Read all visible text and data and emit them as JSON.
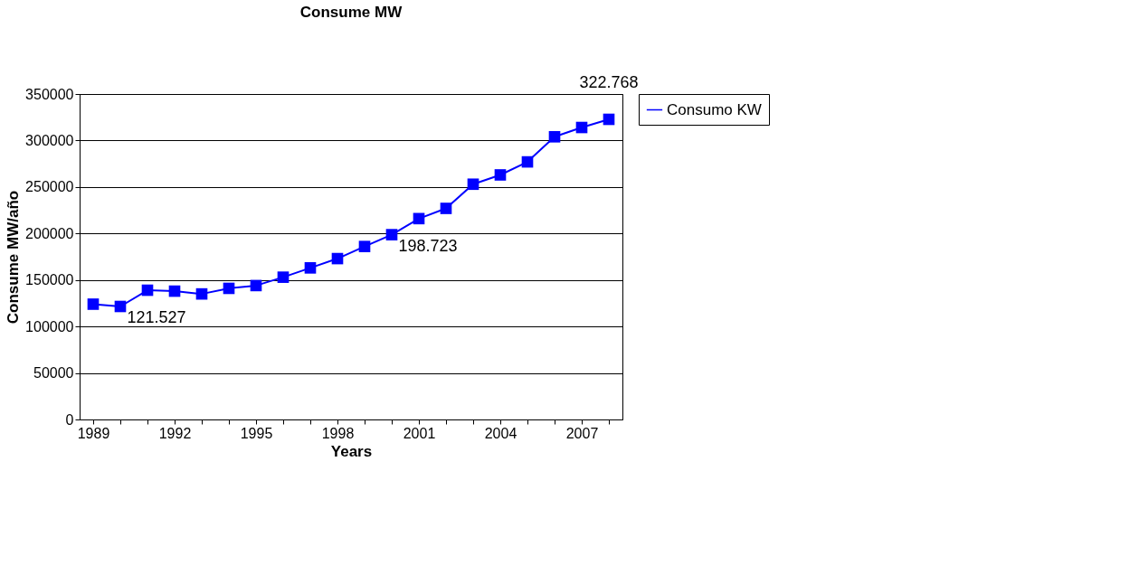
{
  "chart_data": {
    "type": "line",
    "title": "Consume MW",
    "xlabel": "Years",
    "ylabel": "Consume MW/año",
    "categories": [
      "1989",
      null,
      null,
      "1992",
      null,
      null,
      "1995",
      null,
      null,
      "1998",
      null,
      null,
      "2001",
      null,
      null,
      "2004",
      null,
      null,
      "2007",
      null
    ],
    "series": [
      {
        "name": "Consumo KW",
        "color": "#0000ff",
        "values": [
          124000,
          121527,
          139000,
          138000,
          135000,
          141000,
          144000,
          153000,
          163000,
          173000,
          186000,
          198723,
          216000,
          227000,
          253000,
          263000,
          277000,
          304000,
          314000,
          322768
        ],
        "value_labels": [
          null,
          "121.527",
          null,
          null,
          null,
          null,
          null,
          null,
          null,
          null,
          null,
          "198.723",
          null,
          null,
          null,
          null,
          null,
          null,
          null,
          "322.768"
        ]
      }
    ],
    "ylim": [
      0,
      350000
    ],
    "yticks": [
      0,
      50000,
      100000,
      150000,
      200000,
      250000,
      300000,
      350000
    ],
    "grid": "y",
    "legend": "right",
    "marker": "square",
    "line_style": "solid"
  }
}
